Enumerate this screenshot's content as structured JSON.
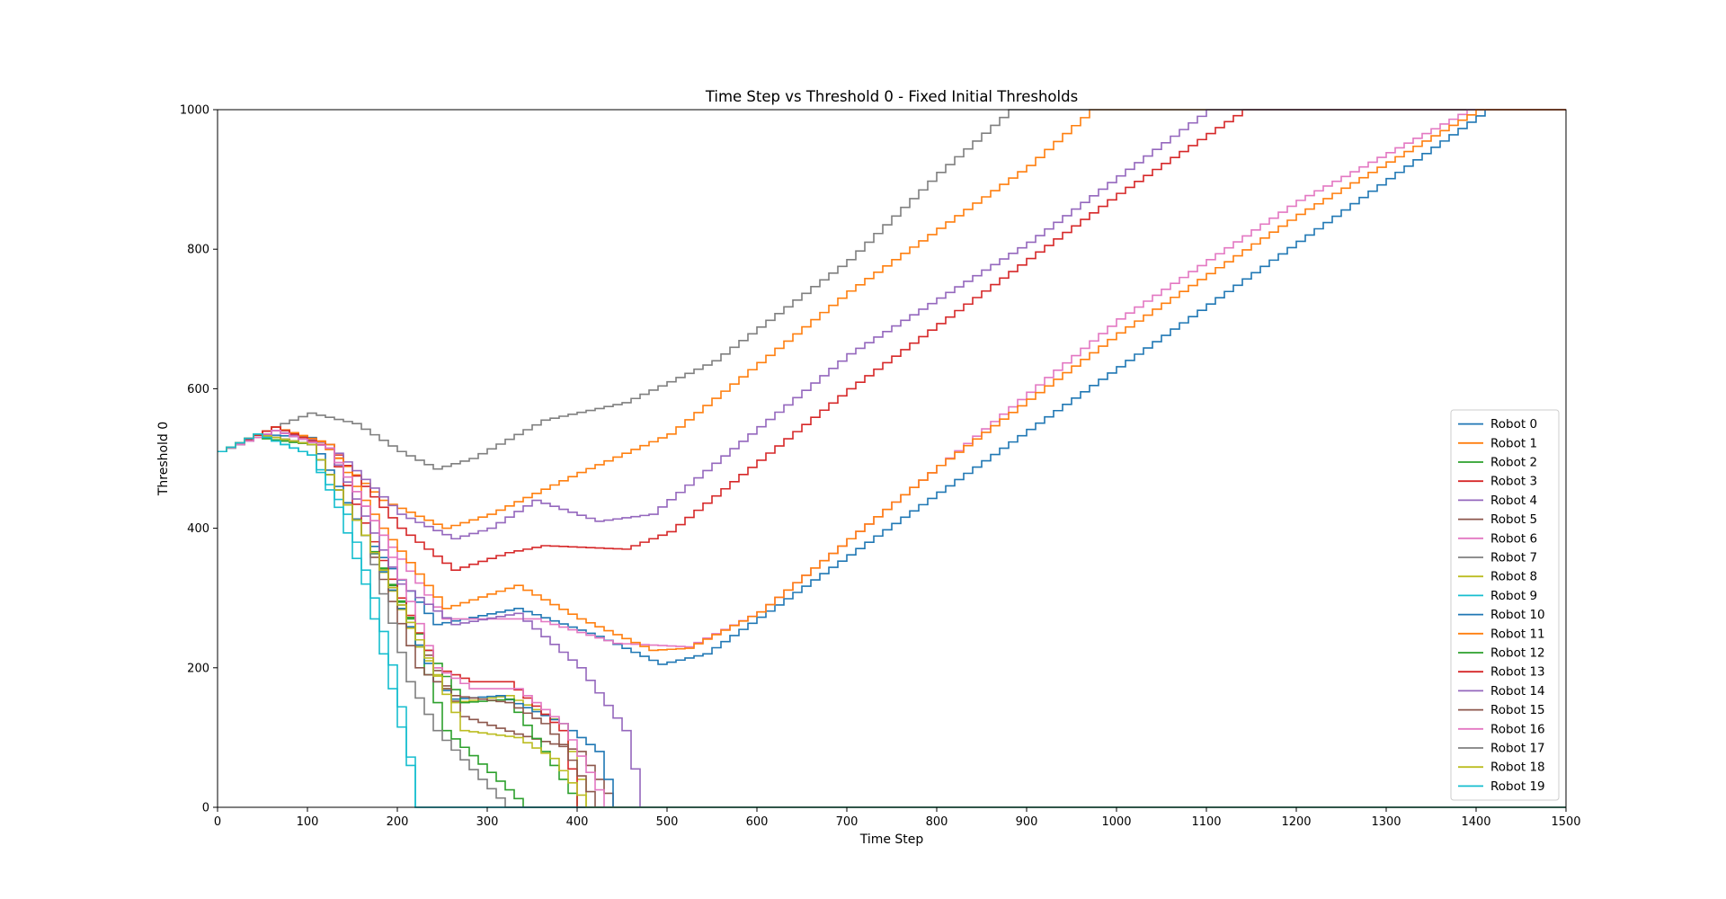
{
  "chart_data": {
    "type": "line",
    "title": "Time Step vs Threshold 0 - Fixed Initial Thresholds",
    "xlabel": "Time Step",
    "ylabel": "Threshold 0",
    "xlim": [
      0,
      1500
    ],
    "ylim": [
      0,
      1000
    ],
    "xticks": [
      0,
      100,
      200,
      300,
      400,
      500,
      600,
      700,
      800,
      900,
      1000,
      1100,
      1200,
      1300,
      1400,
      1500
    ],
    "yticks": [
      0,
      200,
      400,
      600,
      800,
      1000
    ],
    "grid": false,
    "legend_position": "lower-right",
    "line_style": "step",
    "series": [
      {
        "name": "Robot 0",
        "color": "#1f77b4",
        "points": [
          [
            0,
            510
          ],
          [
            40,
            535
          ],
          [
            100,
            530
          ],
          [
            160,
            390
          ],
          [
            240,
            262
          ],
          [
            330,
            285
          ],
          [
            420,
            245
          ],
          [
            490,
            205
          ],
          [
            540,
            220
          ],
          [
            620,
            290
          ],
          [
            1410,
            1000
          ],
          [
            1500,
            1000
          ]
        ]
      },
      {
        "name": "Robot 1",
        "color": "#ff7f0e",
        "points": [
          [
            0,
            510
          ],
          [
            60,
            545
          ],
          [
            110,
            525
          ],
          [
            180,
            440
          ],
          [
            250,
            400
          ],
          [
            300,
            420
          ],
          [
            400,
            480
          ],
          [
            500,
            535
          ],
          [
            700,
            740
          ],
          [
            900,
            920
          ],
          [
            970,
            1000
          ],
          [
            1500,
            1000
          ]
        ]
      },
      {
        "name": "Robot 2",
        "color": "#2ca02c",
        "points": [
          [
            0,
            510
          ],
          [
            40,
            530
          ],
          [
            100,
            520
          ],
          [
            160,
            390
          ],
          [
            210,
            270
          ],
          [
            250,
            110
          ],
          [
            300,
            50
          ],
          [
            340,
            0
          ],
          [
            1500,
            0
          ]
        ]
      },
      {
        "name": "Robot 3",
        "color": "#d62728",
        "points": [
          [
            0,
            510
          ],
          [
            60,
            545
          ],
          [
            120,
            520
          ],
          [
            200,
            400
          ],
          [
            260,
            340
          ],
          [
            320,
            365
          ],
          [
            360,
            375
          ],
          [
            450,
            370
          ],
          [
            500,
            395
          ],
          [
            700,
            600
          ],
          [
            1000,
            880
          ],
          [
            1140,
            1000
          ],
          [
            1500,
            1000
          ]
        ]
      },
      {
        "name": "Robot 4",
        "color": "#9467bd",
        "points": [
          [
            0,
            510
          ],
          [
            60,
            540
          ],
          [
            120,
            520
          ],
          [
            200,
            420
          ],
          [
            260,
            385
          ],
          [
            300,
            400
          ],
          [
            350,
            440
          ],
          [
            420,
            410
          ],
          [
            480,
            420
          ],
          [
            700,
            650
          ],
          [
            900,
            810
          ],
          [
            1100,
            1000
          ],
          [
            1500,
            1000
          ]
        ]
      },
      {
        "name": "Robot 5",
        "color": "#8c564b",
        "points": [
          [
            0,
            510
          ],
          [
            40,
            535
          ],
          [
            100,
            520
          ],
          [
            160,
            390
          ],
          [
            220,
            240
          ],
          [
            270,
            130
          ],
          [
            330,
            105
          ],
          [
            400,
            80
          ],
          [
            440,
            0
          ],
          [
            1500,
            0
          ]
        ]
      },
      {
        "name": "Robot 6",
        "color": "#e377c2",
        "points": [
          [
            0,
            510
          ],
          [
            60,
            540
          ],
          [
            120,
            515
          ],
          [
            180,
            390
          ],
          [
            250,
            270
          ],
          [
            350,
            270
          ],
          [
            440,
            235
          ],
          [
            520,
            230
          ],
          [
            600,
            280
          ],
          [
            800,
            490
          ],
          [
            1000,
            700
          ],
          [
            1200,
            870
          ],
          [
            1390,
            1000
          ],
          [
            1500,
            1000
          ]
        ]
      },
      {
        "name": "Robot 7",
        "color": "#7f7f7f",
        "points": [
          [
            0,
            510
          ],
          [
            60,
            545
          ],
          [
            100,
            565
          ],
          [
            150,
            550
          ],
          [
            200,
            510
          ],
          [
            240,
            485
          ],
          [
            280,
            500
          ],
          [
            360,
            555
          ],
          [
            450,
            580
          ],
          [
            550,
            640
          ],
          [
            700,
            785
          ],
          [
            800,
            910
          ],
          [
            880,
            1000
          ],
          [
            1500,
            1000
          ]
        ]
      },
      {
        "name": "Robot 8",
        "color": "#bcbd22",
        "points": [
          [
            0,
            510
          ],
          [
            40,
            535
          ],
          [
            100,
            520
          ],
          [
            160,
            390
          ],
          [
            220,
            230
          ],
          [
            260,
            150
          ],
          [
            320,
            160
          ],
          [
            380,
            120
          ],
          [
            410,
            0
          ],
          [
            1500,
            0
          ]
        ]
      },
      {
        "name": "Robot 9",
        "color": "#17becf",
        "points": [
          [
            0,
            510
          ],
          [
            40,
            535
          ],
          [
            100,
            505
          ],
          [
            140,
            420
          ],
          [
            170,
            300
          ],
          [
            195,
            180
          ],
          [
            220,
            0
          ],
          [
            1500,
            0
          ]
        ]
      },
      {
        "name": "Robot 10",
        "color": "#1f77b4",
        "points": [
          [
            0,
            510
          ],
          [
            40,
            535
          ],
          [
            100,
            520
          ],
          [
            160,
            390
          ],
          [
            240,
            180
          ],
          [
            260,
            155
          ],
          [
            310,
            160
          ],
          [
            380,
            120
          ],
          [
            420,
            80
          ],
          [
            440,
            0
          ],
          [
            1500,
            0
          ]
        ]
      },
      {
        "name": "Robot 11",
        "color": "#ff7f0e",
        "points": [
          [
            0,
            510
          ],
          [
            60,
            545
          ],
          [
            120,
            520
          ],
          [
            180,
            400
          ],
          [
            250,
            285
          ],
          [
            330,
            318
          ],
          [
            400,
            270
          ],
          [
            480,
            225
          ],
          [
            520,
            228
          ],
          [
            600,
            280
          ],
          [
            800,
            490
          ],
          [
            1000,
            680
          ],
          [
            1200,
            850
          ],
          [
            1400,
            1000
          ],
          [
            1500,
            1000
          ]
        ]
      },
      {
        "name": "Robot 12",
        "color": "#2ca02c",
        "points": [
          [
            0,
            510
          ],
          [
            40,
            530
          ],
          [
            100,
            520
          ],
          [
            160,
            390
          ],
          [
            230,
            225
          ],
          [
            270,
            150
          ],
          [
            320,
            155
          ],
          [
            360,
            80
          ],
          [
            400,
            0
          ],
          [
            1500,
            0
          ]
        ]
      },
      {
        "name": "Robot 13",
        "color": "#d62728",
        "points": [
          [
            0,
            510
          ],
          [
            60,
            545
          ],
          [
            120,
            515
          ],
          [
            200,
            300
          ],
          [
            240,
            200
          ],
          [
            280,
            180
          ],
          [
            320,
            180
          ],
          [
            380,
            110
          ],
          [
            400,
            0
          ],
          [
            1500,
            0
          ]
        ]
      },
      {
        "name": "Robot 14",
        "color": "#9467bd",
        "points": [
          [
            0,
            510
          ],
          [
            60,
            540
          ],
          [
            120,
            515
          ],
          [
            200,
            320
          ],
          [
            260,
            262
          ],
          [
            330,
            278
          ],
          [
            400,
            200
          ],
          [
            450,
            110
          ],
          [
            470,
            0
          ],
          [
            1500,
            0
          ]
        ]
      },
      {
        "name": "Robot 15",
        "color": "#8c564b",
        "points": [
          [
            0,
            510
          ],
          [
            40,
            535
          ],
          [
            100,
            520
          ],
          [
            160,
            390
          ],
          [
            220,
            200
          ],
          [
            260,
            160
          ],
          [
            320,
            150
          ],
          [
            360,
            120
          ],
          [
            380,
            90
          ],
          [
            420,
            0
          ],
          [
            1500,
            0
          ]
        ]
      },
      {
        "name": "Robot 16",
        "color": "#e377c2",
        "points": [
          [
            0,
            510
          ],
          [
            60,
            540
          ],
          [
            120,
            515
          ],
          [
            180,
            390
          ],
          [
            240,
            200
          ],
          [
            280,
            170
          ],
          [
            330,
            170
          ],
          [
            380,
            120
          ],
          [
            410,
            50
          ],
          [
            430,
            0
          ],
          [
            1500,
            0
          ]
        ]
      },
      {
        "name": "Robot 17",
        "color": "#7f7f7f",
        "points": [
          [
            0,
            510
          ],
          [
            40,
            535
          ],
          [
            100,
            520
          ],
          [
            160,
            390
          ],
          [
            210,
            180
          ],
          [
            240,
            110
          ],
          [
            290,
            40
          ],
          [
            320,
            0
          ],
          [
            1500,
            0
          ]
        ]
      },
      {
        "name": "Robot 18",
        "color": "#bcbd22",
        "points": [
          [
            0,
            510
          ],
          [
            40,
            535
          ],
          [
            100,
            520
          ],
          [
            160,
            390
          ],
          [
            220,
            240
          ],
          [
            270,
            110
          ],
          [
            330,
            100
          ],
          [
            370,
            70
          ],
          [
            410,
            0
          ],
          [
            1500,
            0
          ]
        ]
      },
      {
        "name": "Robot 19",
        "color": "#17becf",
        "points": [
          [
            0,
            510
          ],
          [
            40,
            535
          ],
          [
            100,
            505
          ],
          [
            130,
            430
          ],
          [
            160,
            320
          ],
          [
            190,
            170
          ],
          [
            210,
            60
          ],
          [
            220,
            0
          ],
          [
            1500,
            0
          ]
        ]
      }
    ]
  }
}
